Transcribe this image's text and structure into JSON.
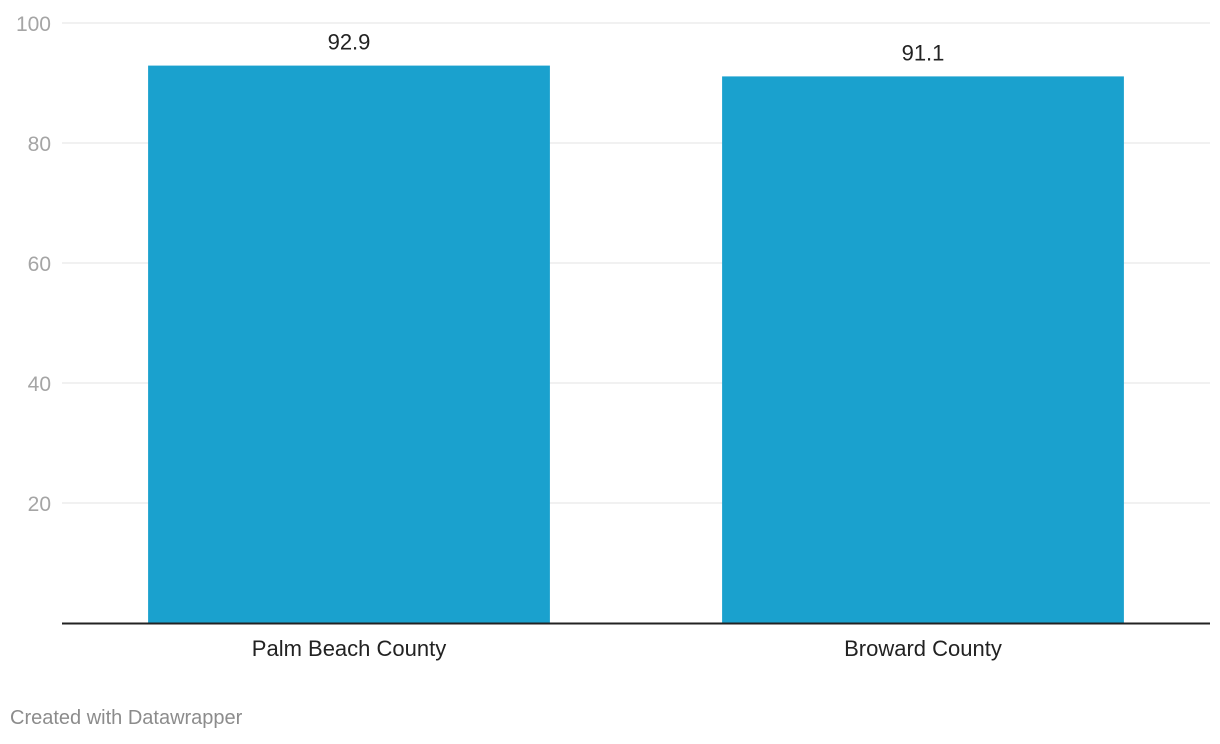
{
  "chart_data": {
    "type": "bar",
    "categories": [
      "Palm Beach County",
      "Broward County"
    ],
    "values": [
      92.9,
      91.1
    ],
    "value_labels": [
      "92.9",
      "91.1"
    ],
    "title": "",
    "xlabel": "",
    "ylabel": "",
    "ylim": [
      0,
      100
    ],
    "yticks": [
      20,
      40,
      60,
      80,
      100
    ],
    "ytick_labels": [
      "20",
      "40",
      "60",
      "80",
      "100"
    ],
    "grid": true,
    "bar_color": "#1aa1ce",
    "axis_color": "#222222",
    "grid_color": "#e3e3e3",
    "tick_label_color": "#a5a5a5",
    "label_color": "#222222"
  },
  "footer": {
    "credit": "Created with Datawrapper"
  }
}
